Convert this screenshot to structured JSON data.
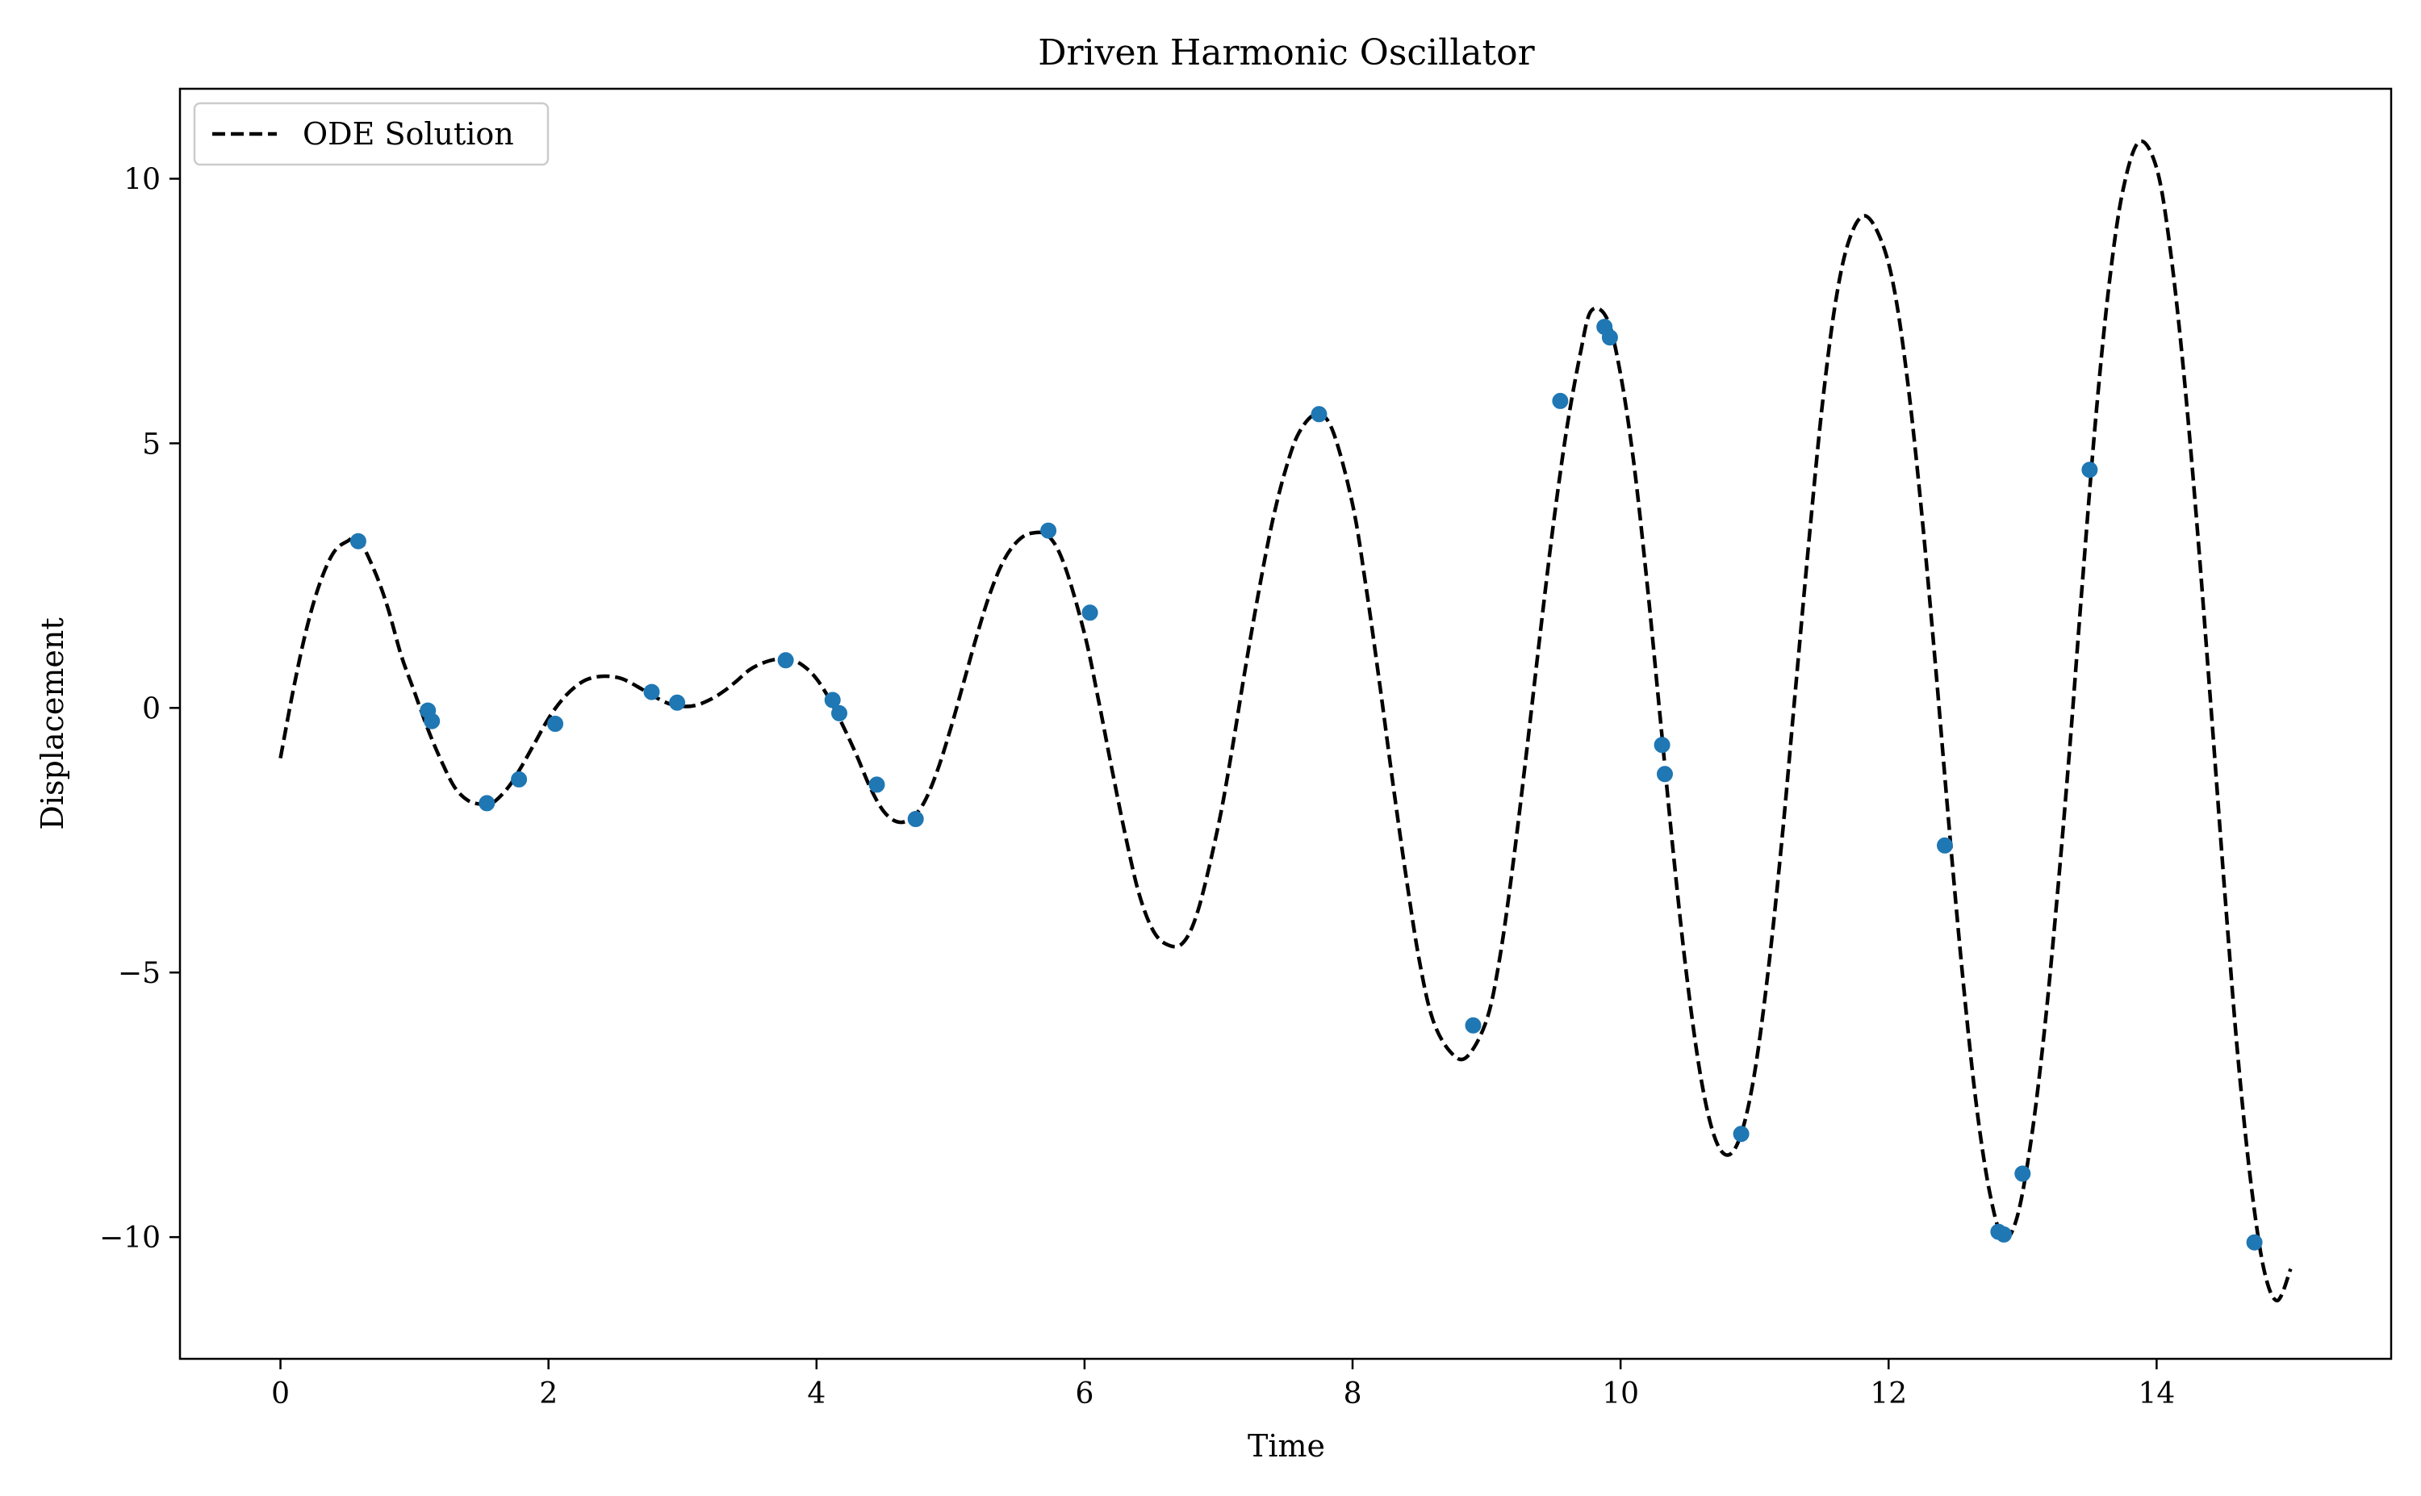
{
  "chart_data": {
    "type": "line",
    "title": "Driven Harmonic Oscillator",
    "xlabel": "Time",
    "ylabel": "Displacement",
    "xlim": [
      -0.75,
      15.75
    ],
    "ylim": [
      -12.3,
      11.7
    ],
    "xticks": [
      0,
      2,
      4,
      6,
      8,
      10,
      12,
      14
    ],
    "yticks": [
      -10,
      -5,
      0,
      5,
      10
    ],
    "ytick_labels": [
      "−10",
      "−5",
      "0",
      "5",
      "10"
    ],
    "grid": false,
    "legend": {
      "position": "top-left",
      "entries": [
        "ODE Solution"
      ]
    },
    "colors": {
      "line": "#000000",
      "points": "#1f77b4"
    },
    "series": [
      {
        "name": "ODE Solution",
        "style": "dashed",
        "x": [
          0.0,
          0.1,
          0.2,
          0.3,
          0.4,
          0.5,
          0.58,
          0.7,
          0.8,
          0.9,
          1.0,
          1.1,
          1.2,
          1.3,
          1.4,
          1.5,
          1.58,
          1.7,
          1.8,
          1.9,
          2.0,
          2.1,
          2.2,
          2.3,
          2.42,
          2.55,
          2.7,
          2.8,
          2.9,
          3.0,
          3.1,
          3.2,
          3.3,
          3.4,
          3.5,
          3.6,
          3.7,
          3.8,
          3.9,
          4.0,
          4.1,
          4.2,
          4.3,
          4.4,
          4.5,
          4.6,
          4.7,
          4.8,
          4.9,
          5.0,
          5.1,
          5.2,
          5.3,
          5.4,
          5.5,
          5.6,
          5.73,
          5.85,
          6.0,
          6.1,
          6.2,
          6.3,
          6.4,
          6.5,
          6.6,
          6.73,
          6.85,
          7.0,
          7.1,
          7.2,
          7.3,
          7.4,
          7.5,
          7.6,
          7.73,
          7.85,
          8.0,
          8.1,
          8.2,
          8.3,
          8.4,
          8.5,
          8.6,
          8.73,
          8.85,
          9.0,
          9.1,
          9.2,
          9.3,
          9.4,
          9.5,
          9.6,
          9.7,
          9.78,
          9.9,
          10.0,
          10.1,
          10.2,
          10.3,
          10.4,
          10.5,
          10.6,
          10.7,
          10.8,
          10.9,
          11.0,
          11.1,
          11.2,
          11.3,
          11.4,
          11.5,
          11.6,
          11.7,
          11.82,
          11.95,
          12.05,
          12.15,
          12.25,
          12.35,
          12.45,
          12.55,
          12.65,
          12.75,
          12.85,
          12.95,
          13.05,
          13.15,
          13.25,
          13.35,
          13.45,
          13.55,
          13.65,
          13.75,
          13.87,
          14.0,
          14.1,
          14.2,
          14.3,
          14.4,
          14.5,
          14.6,
          14.7,
          14.8,
          14.9,
          15.0
        ],
        "y": [
          -0.95,
          0.4,
          1.55,
          2.4,
          2.95,
          3.15,
          3.2,
          2.6,
          1.9,
          1.0,
          0.3,
          -0.4,
          -1.0,
          -1.5,
          -1.75,
          -1.82,
          -1.8,
          -1.5,
          -1.1,
          -0.65,
          -0.2,
          0.15,
          0.4,
          0.55,
          0.6,
          0.55,
          0.35,
          0.2,
          0.08,
          0.03,
          0.05,
          0.15,
          0.3,
          0.5,
          0.72,
          0.85,
          0.92,
          0.92,
          0.8,
          0.55,
          0.15,
          -0.35,
          -0.9,
          -1.5,
          -1.95,
          -2.15,
          -2.1,
          -1.8,
          -1.2,
          -0.4,
          0.5,
          1.4,
          2.2,
          2.8,
          3.15,
          3.3,
          3.25,
          2.7,
          1.4,
          0.2,
          -1.1,
          -2.35,
          -3.45,
          -4.15,
          -4.45,
          -4.45,
          -3.8,
          -2.2,
          -0.8,
          0.75,
          2.2,
          3.5,
          4.5,
          5.2,
          5.55,
          5.25,
          3.85,
          2.3,
          0.5,
          -1.4,
          -3.2,
          -4.8,
          -5.9,
          -6.5,
          -6.6,
          -5.9,
          -4.7,
          -2.9,
          -0.8,
          1.4,
          3.5,
          5.3,
          6.7,
          7.5,
          7.35,
          6.3,
          4.6,
          2.3,
          -0.3,
          -2.9,
          -5.2,
          -7.0,
          -8.1,
          -8.45,
          -8.05,
          -6.9,
          -5.0,
          -2.6,
          0.2,
          3.0,
          5.6,
          7.6,
          8.8,
          9.3,
          8.8,
          7.8,
          6.0,
          3.6,
          0.8,
          -2.2,
          -5.0,
          -7.4,
          -9.1,
          -10.0,
          -9.7,
          -8.4,
          -6.4,
          -3.8,
          -0.8,
          2.5,
          5.6,
          8.1,
          9.8,
          10.7,
          10.2,
          8.7,
          6.4,
          3.5,
          0.2,
          -3.2,
          -6.4,
          -8.9,
          -10.6,
          -11.2,
          -10.6
        ]
      },
      {
        "name": "",
        "style": "points",
        "x": [
          0.58,
          1.1,
          1.13,
          1.54,
          1.78,
          2.05,
          2.77,
          2.96,
          3.77,
          4.12,
          4.17,
          4.45,
          4.74,
          5.73,
          6.04,
          7.75,
          8.9,
          9.55,
          9.88,
          9.92,
          10.31,
          10.33,
          10.9,
          12.42,
          12.82,
          12.86,
          13.0,
          13.5,
          14.73
        ],
        "y": [
          3.15,
          -0.05,
          -0.25,
          -1.8,
          -1.35,
          -0.3,
          0.3,
          0.1,
          0.9,
          0.15,
          -0.1,
          -1.45,
          -2.1,
          3.35,
          1.8,
          5.55,
          -6.0,
          5.8,
          7.2,
          7.0,
          -0.7,
          -1.25,
          -8.05,
          -2.6,
          -9.9,
          -9.95,
          -8.8,
          4.5,
          -10.1
        ]
      }
    ]
  }
}
